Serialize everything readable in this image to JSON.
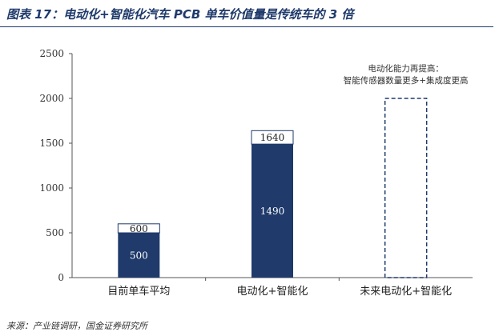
{
  "title": "图表 17：电动化+智能化汽车 PCB 单车价值量是传统车的 3 倍",
  "source": "来源：产业链调研，国金证券研究所",
  "colors": {
    "bar_dark": "#1f3a6b",
    "bar_light": "#ffffff",
    "title": "#1f3a6b"
  },
  "chart_data": {
    "type": "bar",
    "stacked": true,
    "categories": [
      "目前单车平均",
      "电动化+智能化",
      "未来电动化+智能化"
    ],
    "ylim": [
      0,
      2500
    ],
    "yticks": [
      0,
      500,
      1000,
      1500,
      2000,
      2500
    ],
    "ytick_labels": [
      "0",
      "500",
      "1000",
      "1500",
      "2000",
      "2500"
    ],
    "bars": [
      {
        "base": 500,
        "total": 600,
        "base_label": "500",
        "total_label": "600"
      },
      {
        "base": 1490,
        "total": 1640,
        "base_label": "1490",
        "total_label": "1640"
      },
      {
        "dashed_total": 2000
      }
    ],
    "annotation": [
      "电动化能力再提高：",
      "智能传感器数量更多+集成度更高"
    ]
  }
}
